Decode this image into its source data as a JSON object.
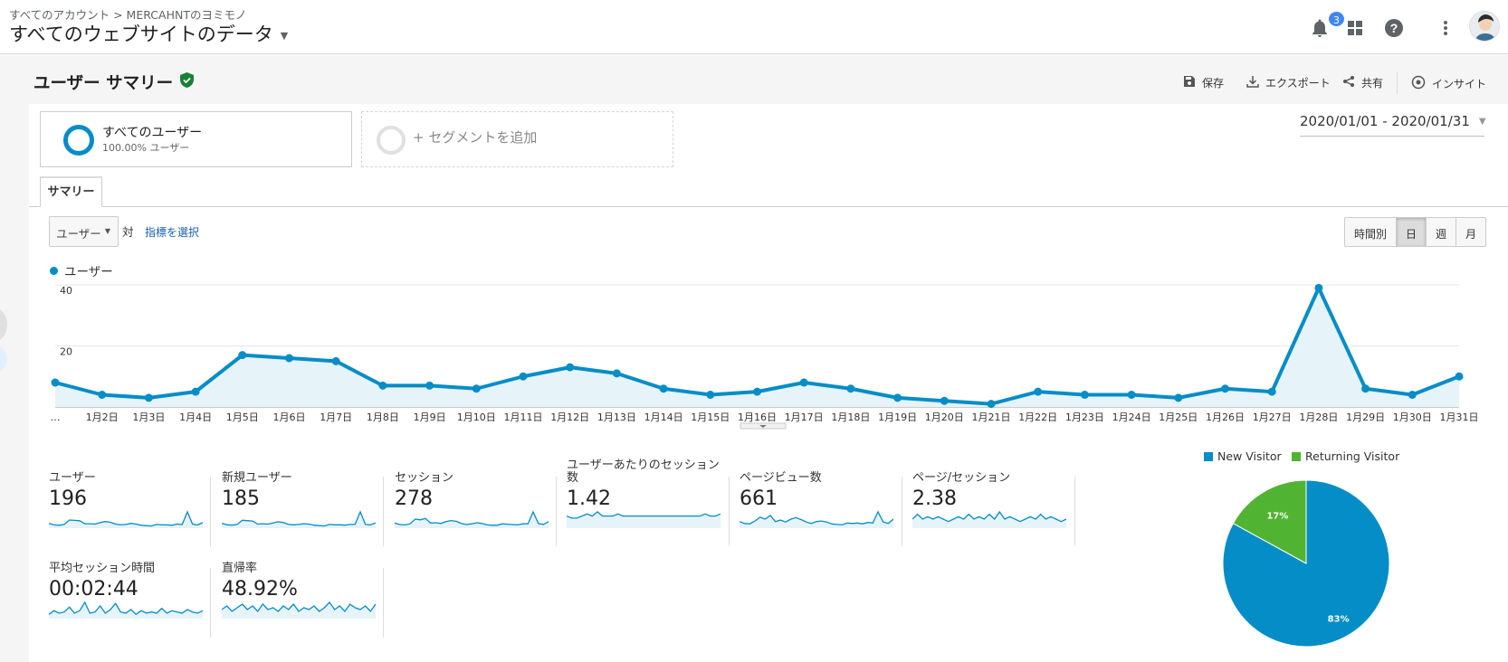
{
  "header": {
    "breadcrumb": "すべてのアカウント > MERCAHNTのヨミモノ",
    "account": "すべてのウェブサイトのデータ",
    "notification_count": "3",
    "icons": [
      "bell-icon",
      "apps-grid-icon",
      "help-icon",
      "more-vert-icon",
      "avatar"
    ]
  },
  "page": {
    "title": "ユーザー サマリー",
    "toolbar": {
      "save": "保存",
      "export": "エクスポート",
      "share": "共有",
      "insight": "インサイト"
    }
  },
  "segments": {
    "primary_name": "すべてのユーザー",
    "primary_pct": "100.00% ユーザー",
    "add_label": "+ セグメントを追加"
  },
  "date_range": "2020/01/01 - 2020/01/31",
  "tab": "サマリー",
  "controls": {
    "metric": "ユーザー",
    "vs": "対",
    "select_metric": "指標を選択",
    "granularity": [
      "時間別",
      "日",
      "週",
      "月"
    ],
    "selected_granularity": "日"
  },
  "colors": {
    "accent": "#058dc7",
    "new_visitor": "#058dc7",
    "returning_visitor": "#50b432"
  },
  "chart_data": [
    {
      "type": "area",
      "legend": "ユーザー",
      "x_labels": [
        "…",
        "1月2日",
        "1月3日",
        "1月4日",
        "1月5日",
        "1月6日",
        "1月7日",
        "1月8日",
        "1月9日",
        "1月10日",
        "1月11日",
        "1月12日",
        "1月13日",
        "1月14日",
        "1月15日",
        "1月16日",
        "1月17日",
        "1月18日",
        "1月19日",
        "1月20日",
        "1月21日",
        "1月22日",
        "1月23日",
        "1月24日",
        "1月25日",
        "1月26日",
        "1月27日",
        "1月28日",
        "1月29日",
        "1月30日",
        "1月31日"
      ],
      "values": [
        8,
        4,
        3,
        5,
        17,
        16,
        15,
        7,
        7,
        6,
        10,
        13,
        11,
        6,
        4,
        5,
        8,
        6,
        3,
        2,
        1,
        5,
        4,
        4,
        3,
        6,
        5,
        39,
        6,
        4,
        10
      ],
      "yticks": [
        "20",
        "40"
      ],
      "ylim": [
        0,
        40
      ]
    },
    {
      "type": "pie",
      "labels": [
        "New Visitor",
        "Returning Visitor"
      ],
      "values": [
        83,
        17
      ],
      "value_labels": [
        "83%",
        "17%"
      ]
    }
  ],
  "metrics": [
    {
      "label": "ユーザー",
      "value": "196",
      "spark": [
        8,
        4,
        3,
        5,
        17,
        16,
        15,
        7,
        7,
        6,
        10,
        13,
        11,
        6,
        4,
        5,
        8,
        6,
        3,
        2,
        1,
        5,
        4,
        4,
        3,
        6,
        5,
        39,
        6,
        4,
        10
      ]
    },
    {
      "label": "新規ユーザー",
      "value": "185",
      "spark": [
        8,
        4,
        3,
        5,
        16,
        15,
        14,
        6,
        7,
        6,
        9,
        12,
        10,
        5,
        4,
        5,
        7,
        6,
        3,
        2,
        1,
        5,
        4,
        4,
        3,
        5,
        5,
        38,
        5,
        4,
        9
      ]
    },
    {
      "label": "セッション",
      "value": "278",
      "spark": [
        9,
        5,
        4,
        7,
        20,
        18,
        22,
        9,
        10,
        8,
        13,
        16,
        14,
        8,
        5,
        7,
        10,
        8,
        4,
        3,
        3,
        7,
        6,
        5,
        4,
        7,
        7,
        40,
        8,
        5,
        13
      ]
    },
    {
      "label": "ユーザーあたりのセッション数",
      "value": "1.42",
      "spark": [
        5,
        4,
        4,
        5,
        6,
        5,
        7,
        5,
        5,
        5,
        6,
        5,
        5,
        5,
        5,
        5,
        5,
        5,
        5,
        5,
        5,
        5,
        5,
        5,
        5,
        5,
        5,
        6,
        5,
        5,
        6
      ]
    },
    {
      "label": "ページビュー数",
      "value": "661",
      "spark": [
        20,
        12,
        10,
        22,
        38,
        30,
        45,
        20,
        26,
        18,
        30,
        36,
        28,
        18,
        12,
        20,
        22,
        18,
        10,
        8,
        6,
        14,
        12,
        14,
        10,
        16,
        14,
        60,
        18,
        12,
        30
      ]
    },
    {
      "label": "ページ/セッション",
      "value": "2.38",
      "spark": [
        3,
        5,
        3,
        4,
        3,
        4,
        3,
        2,
        3,
        4,
        3,
        5,
        3,
        4,
        3,
        5,
        3,
        6,
        3,
        4,
        3,
        2,
        3,
        4,
        3,
        5,
        3,
        4,
        3,
        2,
        3
      ]
    },
    {
      "label": "平均セッション時間",
      "value": "00:02:44",
      "spark": [
        2,
        5,
        3,
        4,
        8,
        3,
        5,
        12,
        3,
        4,
        9,
        3,
        6,
        11,
        4,
        3,
        6,
        2,
        5,
        3,
        4,
        3,
        7,
        3,
        5,
        4,
        3,
        6,
        4,
        3,
        5
      ]
    },
    {
      "label": "直帰率",
      "value": "48.92%",
      "spark": [
        4,
        6,
        3,
        5,
        7,
        4,
        6,
        3,
        7,
        4,
        5,
        3,
        6,
        4,
        7,
        3,
        5,
        4,
        6,
        3,
        5,
        8,
        4,
        6,
        3,
        7,
        5,
        4,
        6,
        3,
        7
      ]
    }
  ]
}
